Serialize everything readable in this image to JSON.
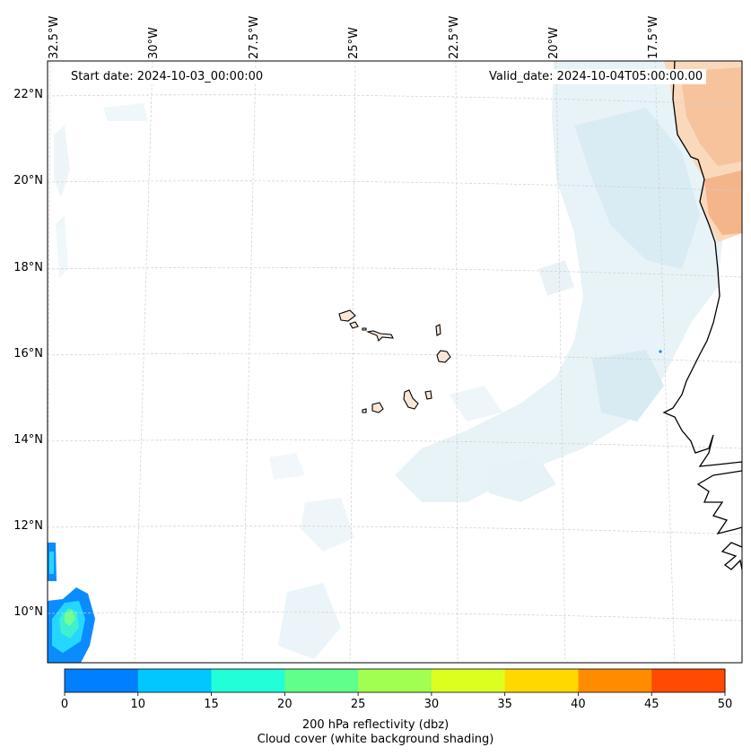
{
  "map": {
    "start_date": "Start date: 2024-10-03_00:00:00",
    "valid_date": "Valid_date: 2024-10-04T05:00:00.00",
    "longitude_labels": [
      "32.5°W",
      "30°W",
      "27.5°W",
      "25°W",
      "22.5°W",
      "20°W",
      "17.5°W"
    ],
    "latitude_labels": [
      "22°N",
      "20°N",
      "18°N",
      "16°N",
      "14°N",
      "12°N",
      "10°N"
    ],
    "region": "Cape Verde / West African coast"
  },
  "colorbar": {
    "ticks": [
      "0",
      "10",
      "15",
      "20",
      "25",
      "30",
      "35",
      "40",
      "45",
      "50"
    ],
    "colors": [
      "#0080ff",
      "#00c8ff",
      "#22ffd8",
      "#60ff8a",
      "#a0ff50",
      "#dcff20",
      "#ffd800",
      "#ff8c00",
      "#ff4a00"
    ],
    "label_line1": "200 hPa reflectivity (dbz)",
    "label_line2": "Cloud cover (white background shading)"
  },
  "palette": {
    "cloud_light": "#e8f3f8",
    "cloud_mid": "#d2e8f1",
    "land_warm": "#f6c9a5",
    "land_warm2": "#f3b68a",
    "reflectivity_low": "#0a8cff",
    "reflectivity_mid": "#3ff0d0",
    "reflectivity_high": "#70ff90",
    "coast": "#000000",
    "grid": "#cfcfcf"
  }
}
